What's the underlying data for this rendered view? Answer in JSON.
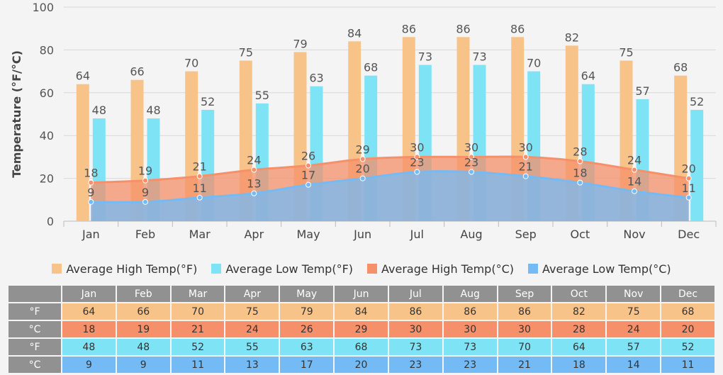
{
  "chart_data": {
    "type": "bar",
    "categories": [
      "Jan",
      "Feb",
      "Mar",
      "Apr",
      "May",
      "Jun",
      "Jul",
      "Aug",
      "Sep",
      "Oct",
      "Nov",
      "Dec"
    ],
    "ylabel": "Temperature (°F/°C)",
    "ylim": [
      0,
      100
    ],
    "yticks": [
      0,
      20,
      40,
      60,
      80,
      100
    ],
    "grid": true,
    "legend_position": "bottom",
    "series": [
      {
        "name": "Average High Temp(°F)",
        "type": "bar",
        "color": "#f8c389",
        "values": [
          64,
          66,
          70,
          75,
          79,
          84,
          86,
          86,
          86,
          82,
          75,
          68
        ]
      },
      {
        "name": "Average Low Temp(°F)",
        "type": "bar",
        "color": "#7ee3f5",
        "values": [
          48,
          48,
          52,
          55,
          63,
          68,
          73,
          73,
          70,
          64,
          57,
          52
        ]
      },
      {
        "name": "Average High Temp(°C)",
        "type": "area",
        "color": "#f6906a",
        "values": [
          18,
          19,
          21,
          24,
          26,
          29,
          30,
          30,
          30,
          28,
          24,
          20
        ]
      },
      {
        "name": "Average Low Temp(°C)",
        "type": "area",
        "color": "#74bbf6",
        "values": [
          9,
          9,
          11,
          13,
          17,
          20,
          23,
          23,
          21,
          18,
          14,
          11
        ]
      }
    ]
  },
  "table": {
    "headers": [
      "Jan",
      "Feb",
      "Mar",
      "Apr",
      "May",
      "Jun",
      "Jul",
      "Aug",
      "Sep",
      "Oct",
      "Nov",
      "Dec"
    ],
    "rows": [
      {
        "unit": "°F",
        "values": [
          "64",
          "66",
          "70",
          "75",
          "79",
          "84",
          "86",
          "86",
          "86",
          "82",
          "75",
          "68"
        ]
      },
      {
        "unit": "°C",
        "values": [
          "18",
          "19",
          "21",
          "24",
          "26",
          "29",
          "30",
          "30",
          "30",
          "28",
          "24",
          "20"
        ]
      },
      {
        "unit": "°F",
        "values": [
          "48",
          "48",
          "52",
          "55",
          "63",
          "68",
          "73",
          "73",
          "70",
          "64",
          "57",
          "52"
        ]
      },
      {
        "unit": "°C",
        "values": [
          "9",
          "9",
          "11",
          "13",
          "17",
          "20",
          "23",
          "23",
          "21",
          "18",
          "14",
          "11"
        ]
      }
    ]
  }
}
